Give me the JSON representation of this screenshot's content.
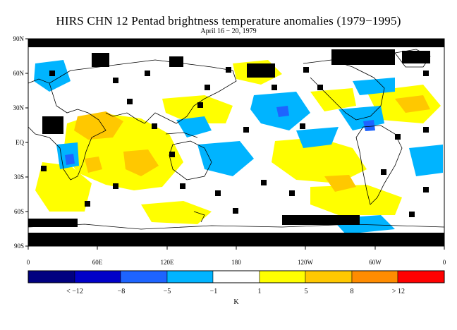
{
  "title": "HIRS CHN 12 Pentad brightness temperature anomalies (1979−1995)",
  "subtitle": "April 16 − 20, 1979",
  "lat_labels": [
    "90N",
    "60N",
    "30N",
    "EQ",
    "30S",
    "60S",
    "90S"
  ],
  "lon_labels": [
    "0",
    "60E",
    "120E",
    "180",
    "120W",
    "60W",
    "0"
  ],
  "colorbar": {
    "colors": [
      "#000080",
      "#0000c8",
      "#1e64ff",
      "#00b4ff",
      "#ffffff",
      "#ffff00",
      "#ffc800",
      "#ff8c00",
      "#ff0000"
    ],
    "labels": [
      "< −12",
      "−8",
      "−5",
      "−1",
      "1",
      "5",
      "8",
      "> 12"
    ],
    "unit": "K"
  },
  "colors": {
    "missing": "#000000",
    "cold": "#00b4ff",
    "warm": "#ffff00",
    "warmer": "#ffc800",
    "blue_deep": "#1e64ff"
  }
}
